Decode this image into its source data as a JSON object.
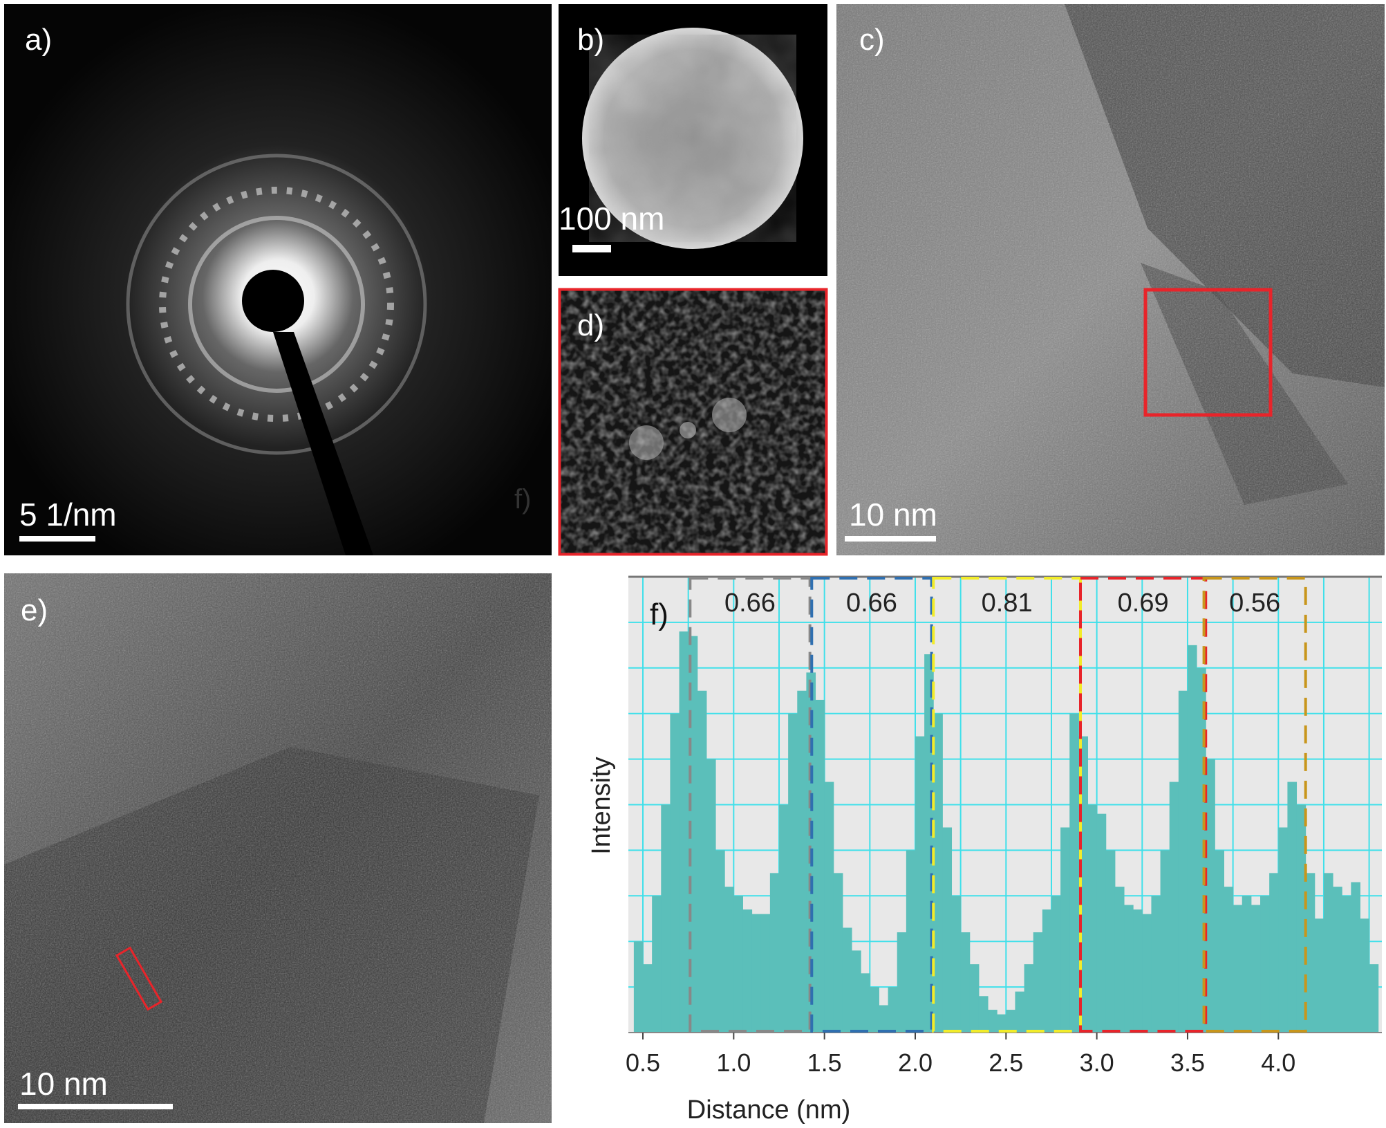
{
  "panels": {
    "a": {
      "label": "a)",
      "scale_bar": "5 1/nm",
      "stray_label": "f)"
    },
    "b": {
      "label": "b)",
      "scale_bar": "100 nm"
    },
    "c": {
      "label": "c)",
      "scale_bar": "10 nm"
    },
    "d": {
      "label": "d)"
    },
    "e": {
      "label": "e)",
      "scale_bar": "10 nm"
    }
  },
  "chart_data": {
    "type": "histogram",
    "panel_label": "f)",
    "x_label": "Distance (nm)",
    "y_label": "Intensity",
    "color": "#5bbfba",
    "grid_color": "#3fe0ea",
    "background": "#e8e8e8",
    "grid": true,
    "xlim": [
      0.42,
      4.57
    ],
    "ylim": [
      0,
      10
    ],
    "xticks": [
      {
        "value": 0.5,
        "label": "0.5"
      },
      {
        "value": 1,
        "label": "1.0"
      },
      {
        "value": 1.5,
        "label": "1.5"
      },
      {
        "value": 2,
        "label": "2.0"
      },
      {
        "value": 2.5,
        "label": "2.5"
      },
      {
        "value": 3,
        "label": "3.0"
      },
      {
        "value": 3.5,
        "label": "3.5"
      },
      {
        "value": 4,
        "label": "4.0"
      }
    ],
    "xminor": [
      0.75,
      1.25,
      1.75,
      2.25,
      2.75,
      3.25,
      3.75,
      4.25,
      4.5
    ],
    "yticks": [
      1,
      2,
      3,
      4,
      5,
      6,
      7,
      8,
      9
    ],
    "bins": [
      0.45,
      0.5,
      0.55,
      0.6,
      0.65,
      0.7,
      0.75,
      0.8,
      0.85,
      0.9,
      0.95,
      1.0,
      1.05,
      1.1,
      1.15,
      1.2,
      1.25,
      1.3,
      1.35,
      1.4,
      1.45,
      1.5,
      1.55,
      1.6,
      1.65,
      1.7,
      1.75,
      1.8,
      1.85,
      1.9,
      1.95,
      2.0,
      2.05,
      2.1,
      2.15,
      2.2,
      2.25,
      2.3,
      2.35,
      2.4,
      2.45,
      2.5,
      2.55,
      2.6,
      2.65,
      2.7,
      2.75,
      2.8,
      2.85,
      2.9,
      2.95,
      3.0,
      3.05,
      3.1,
      3.15,
      3.2,
      3.25,
      3.3,
      3.35,
      3.4,
      3.45,
      3.5,
      3.55,
      3.6,
      3.65,
      3.7,
      3.75,
      3.8,
      3.85,
      3.9,
      3.95,
      4.0,
      4.05,
      4.1,
      4.15,
      4.2,
      4.25,
      4.3,
      4.35,
      4.4,
      4.45,
      4.5,
      4.55
    ],
    "values": [
      2.0,
      1.5,
      3,
      5,
      7,
      8.8,
      8.7,
      7.5,
      6,
      4,
      3.2,
      3,
      2.7,
      2.6,
      2.6,
      3.5,
      5,
      7,
      7.5,
      7.9,
      7.3,
      5.5,
      3.5,
      2.3,
      1.8,
      1.3,
      1.0,
      0.6,
      1.0,
      2.2,
      4,
      6.5,
      8.3,
      7.0,
      4.5,
      3.0,
      2.2,
      1.5,
      0.8,
      0.5,
      0.4,
      0.5,
      0.9,
      1.5,
      2.2,
      2.7,
      3.0,
      4.5,
      7.0,
      6.5,
      5.0,
      4.8,
      4.0,
      3.2,
      2.8,
      2.7,
      2.6,
      3.0,
      4.0,
      5.5,
      7.5,
      8.5,
      8.0,
      6.0,
      4.0,
      3.2,
      2.8,
      3.0,
      2.8,
      3.0,
      3.5,
      4.5,
      5.5,
      5.0,
      3.5,
      2.5,
      3.5,
      3.2,
      3.0,
      3.3,
      2.5,
      1.5
    ],
    "annotations": [
      {
        "label": "0.66",
        "x": [
          0.76,
          1.42
        ],
        "color": "#888888"
      },
      {
        "label": "0.66",
        "x": [
          1.43,
          2.09
        ],
        "color": "#2f6fb0"
      },
      {
        "label": "0.81",
        "x": [
          2.1,
          2.91
        ],
        "color": "#f2ec2a"
      },
      {
        "label": "0.69",
        "x": [
          2.91,
          3.6
        ],
        "color": "#e8242a"
      },
      {
        "label": "0.56",
        "x": [
          3.59,
          4.15
        ],
        "color": "#c8961c"
      }
    ]
  }
}
